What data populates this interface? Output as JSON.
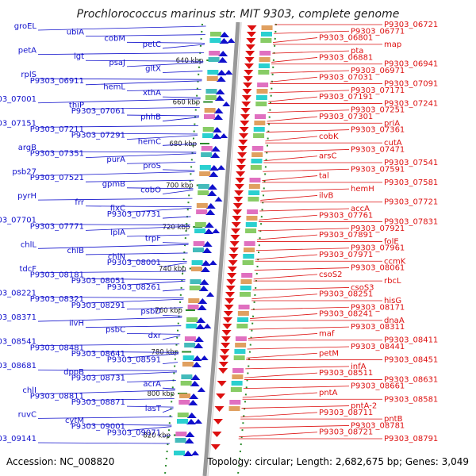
{
  "header": {
    "title": "Prochlorococcus marinus str. MIT 9303, complete genome"
  },
  "footer": {
    "accession": "Accession: NC_008820",
    "topology": "Topology: circular; Length: 2,682,675 bp; Genes: 3,049"
  },
  "colors": {
    "left_strand": "#1010cc",
    "right_strand": "#dd1010",
    "backbone": "#999999",
    "tick": "#2a8a2a"
  },
  "ruler": [
    {
      "label": "640 kbp",
      "y": 0
    },
    {
      "label": "660 kbp",
      "y": 1
    },
    {
      "label": "680 kbp",
      "y": 2
    },
    {
      "label": "700 kbp",
      "y": 3
    },
    {
      "label": "720 kbp",
      "y": 4
    },
    {
      "label": "740 kbp",
      "y": 5
    },
    {
      "label": "760 kbp",
      "y": 6
    },
    {
      "label": "780 kbp",
      "y": 7
    },
    {
      "label": "800 kbp",
      "y": 8
    },
    {
      "label": "820 kbp",
      "y": 9
    }
  ],
  "left_labels": [
    "groEL",
    "ubiA",
    "cobM",
    "petC",
    "petA",
    "lgt",
    "psaJ",
    "gltX",
    "rplS",
    "P9303_06911",
    "hemL",
    "xthA",
    "P9303_07001",
    "thiP",
    "P9303_07061",
    "phhB",
    "P9303_07151",
    "P9303_07211",
    "P9303_07291",
    "hemC",
    "argB",
    "P9303_07351",
    "purA",
    "proS",
    "psb27",
    "P9303_07521",
    "gpmB",
    "cobO",
    "pyrH",
    "frr",
    "fixC",
    "P9303_07731",
    "P9303_07701",
    "P9303_07771",
    "lplA",
    "trpF",
    "chlL",
    "chlB",
    "chlN",
    "P9303_08001",
    "tdcF",
    "P9303_08181",
    "P9303_08051",
    "P9303_08261",
    "P9303_08221",
    "P9303_08321",
    "P9303_08291",
    "psbD",
    "P9303_08371",
    "ilvH",
    "psbC",
    "dxr",
    "P9303_08541",
    "P9303_08481",
    "P9303_08641",
    "P9303_08591",
    "P9303_08681",
    "dppB",
    "P9303_08731",
    "acrA",
    "chlI",
    "P9303_08811",
    "P9303_08871",
    "lasT",
    "ruvC",
    "cytM",
    "P9303_09001",
    "P9303_09071",
    "P9303_09141"
  ],
  "right_labels": [
    "P9303_06721",
    "P9303_06771",
    "P9303_06801",
    "map",
    "pta",
    "P9303_06881",
    "P9303_06941",
    "P9303_06971",
    "P9303_07031",
    "P9303_07091",
    "P9303_07171",
    "P9303_07191",
    "P9303_07241",
    "P9303_07251",
    "P9303_07301",
    "priA",
    "P9303_07361",
    "cobK",
    "cutA",
    "P9303_07471",
    "arsC",
    "P9303_07541",
    "P9303_07591",
    "tal",
    "P9303_07581",
    "hemH",
    "ilvB",
    "P9303_07721",
    "accA",
    "P9303_07761",
    "P9303_07831",
    "P9303_07921",
    "P9303_07891",
    "folE",
    "P9303_07961",
    "P9303_07971",
    "ccmK",
    "P9303_08061",
    "csoS2",
    "rbcL",
    "csoS3",
    "P9303_08251",
    "hisG",
    "P9303_08171",
    "P9303_08241",
    "dnaA",
    "P9303_08311",
    "maf",
    "P9303_08411",
    "P9303_08441",
    "petM",
    "P9303_08451",
    "infA",
    "P9303_08511",
    "P9303_08631",
    "P9303_08661",
    "pntA",
    "P9303_08581",
    "pntA-2",
    "P9303_08711",
    "pntB",
    "P9303_08781",
    "P9303_08721",
    "P9303_08791"
  ]
}
